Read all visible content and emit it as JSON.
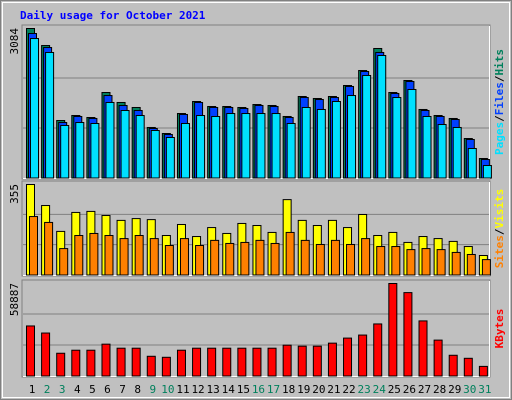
{
  "chart_data": [
    {
      "type": "bar",
      "title": "Daily usage for October 2021",
      "legend_separator": "/",
      "categories": [
        "1",
        "2",
        "3",
        "4",
        "5",
        "6",
        "7",
        "8",
        "9",
        "10",
        "11",
        "12",
        "13",
        "14",
        "15",
        "16",
        "17",
        "18",
        "19",
        "20",
        "21",
        "22",
        "23",
        "24",
        "25",
        "26",
        "27",
        "28",
        "29",
        "30",
        "31"
      ],
      "category_colors": [
        "#000000",
        "#00805c",
        "#00805c",
        "#000000",
        "#000000",
        "#000000",
        "#000000",
        "#000000",
        "#00805c",
        "#00805c",
        "#000000",
        "#000000",
        "#000000",
        "#000000",
        "#000000",
        "#00805c",
        "#00805c",
        "#000000",
        "#000000",
        "#000000",
        "#000000",
        "#000000",
        "#00805c",
        "#00805c",
        "#000000",
        "#000000",
        "#000000",
        "#000000",
        "#000000",
        "#00805c",
        "#00805c"
      ],
      "ylim": [
        0,
        3084
      ],
      "yticks": [
        3084
      ],
      "series": [
        {
          "name": "Hits",
          "color": "#00805c",
          "values": [
            3084,
            2734,
            1192,
            1295,
            1254,
            1768,
            1563,
            1460,
            1049,
            925,
            1336,
            1583,
            1480,
            1480,
            1460,
            1521,
            1501,
            1275,
            1686,
            1645,
            1686,
            1912,
            2220,
            2673,
            1768,
            2015,
            1419,
            1295,
            1234,
            822,
            411
          ]
        },
        {
          "name": "Files",
          "color": "#0040ff",
          "values": [
            2981,
            2693,
            1151,
            1275,
            1234,
            1706,
            1501,
            1398,
            1028,
            905,
            1316,
            1563,
            1460,
            1460,
            1439,
            1501,
            1480,
            1254,
            1665,
            1624,
            1665,
            1892,
            2200,
            2591,
            1748,
            1994,
            1398,
            1275,
            1213,
            802,
            391
          ]
        },
        {
          "name": "Pages",
          "color": "#00e0ff",
          "values": [
            2878,
            2591,
            1090,
            1151,
            1131,
            1563,
            1398,
            1295,
            987,
            843,
            1131,
            1295,
            1275,
            1336,
            1336,
            1336,
            1336,
            1131,
            1460,
            1419,
            1583,
            1706,
            2118,
            2529,
            1665,
            1830,
            1275,
            1110,
            1049,
            617,
            267
          ]
        }
      ]
    },
    {
      "type": "bar",
      "ylim": [
        0,
        355
      ],
      "yticks": [
        355
      ],
      "series": [
        {
          "name": "Visits",
          "color": "#ffff00",
          "values": [
            355,
            273,
            172,
            246,
            250,
            234,
            215,
            222,
            218,
            156,
            199,
            152,
            187,
            164,
            203,
            195,
            168,
            296,
            215,
            195,
            215,
            187,
            238,
            156,
            168,
            129,
            152,
            144,
            133,
            113,
            78
          ]
        },
        {
          "name": "Sites",
          "color": "#ff8000",
          "values": [
            230,
            207,
            105,
            156,
            164,
            156,
            144,
            156,
            144,
            117,
            144,
            117,
            137,
            125,
            129,
            137,
            125,
            168,
            137,
            121,
            137,
            121,
            144,
            113,
            113,
            101,
            105,
            101,
            90,
            82,
            62
          ]
        }
      ]
    },
    {
      "type": "bar",
      "ylim": [
        0,
        58887
      ],
      "yticks": [
        58887
      ],
      "series": [
        {
          "name": "KBytes",
          "color": "#ff0000",
          "values": [
            32000,
            27520,
            14720,
            16640,
            16640,
            20480,
            17920,
            17920,
            12800,
            12160,
            16640,
            17920,
            17920,
            17920,
            17920,
            17920,
            17920,
            19840,
            19200,
            19200,
            21120,
            24320,
            26240,
            33280,
            58887,
            53120,
            35200,
            23040,
            13440,
            11520,
            6400
          ]
        }
      ]
    }
  ]
}
